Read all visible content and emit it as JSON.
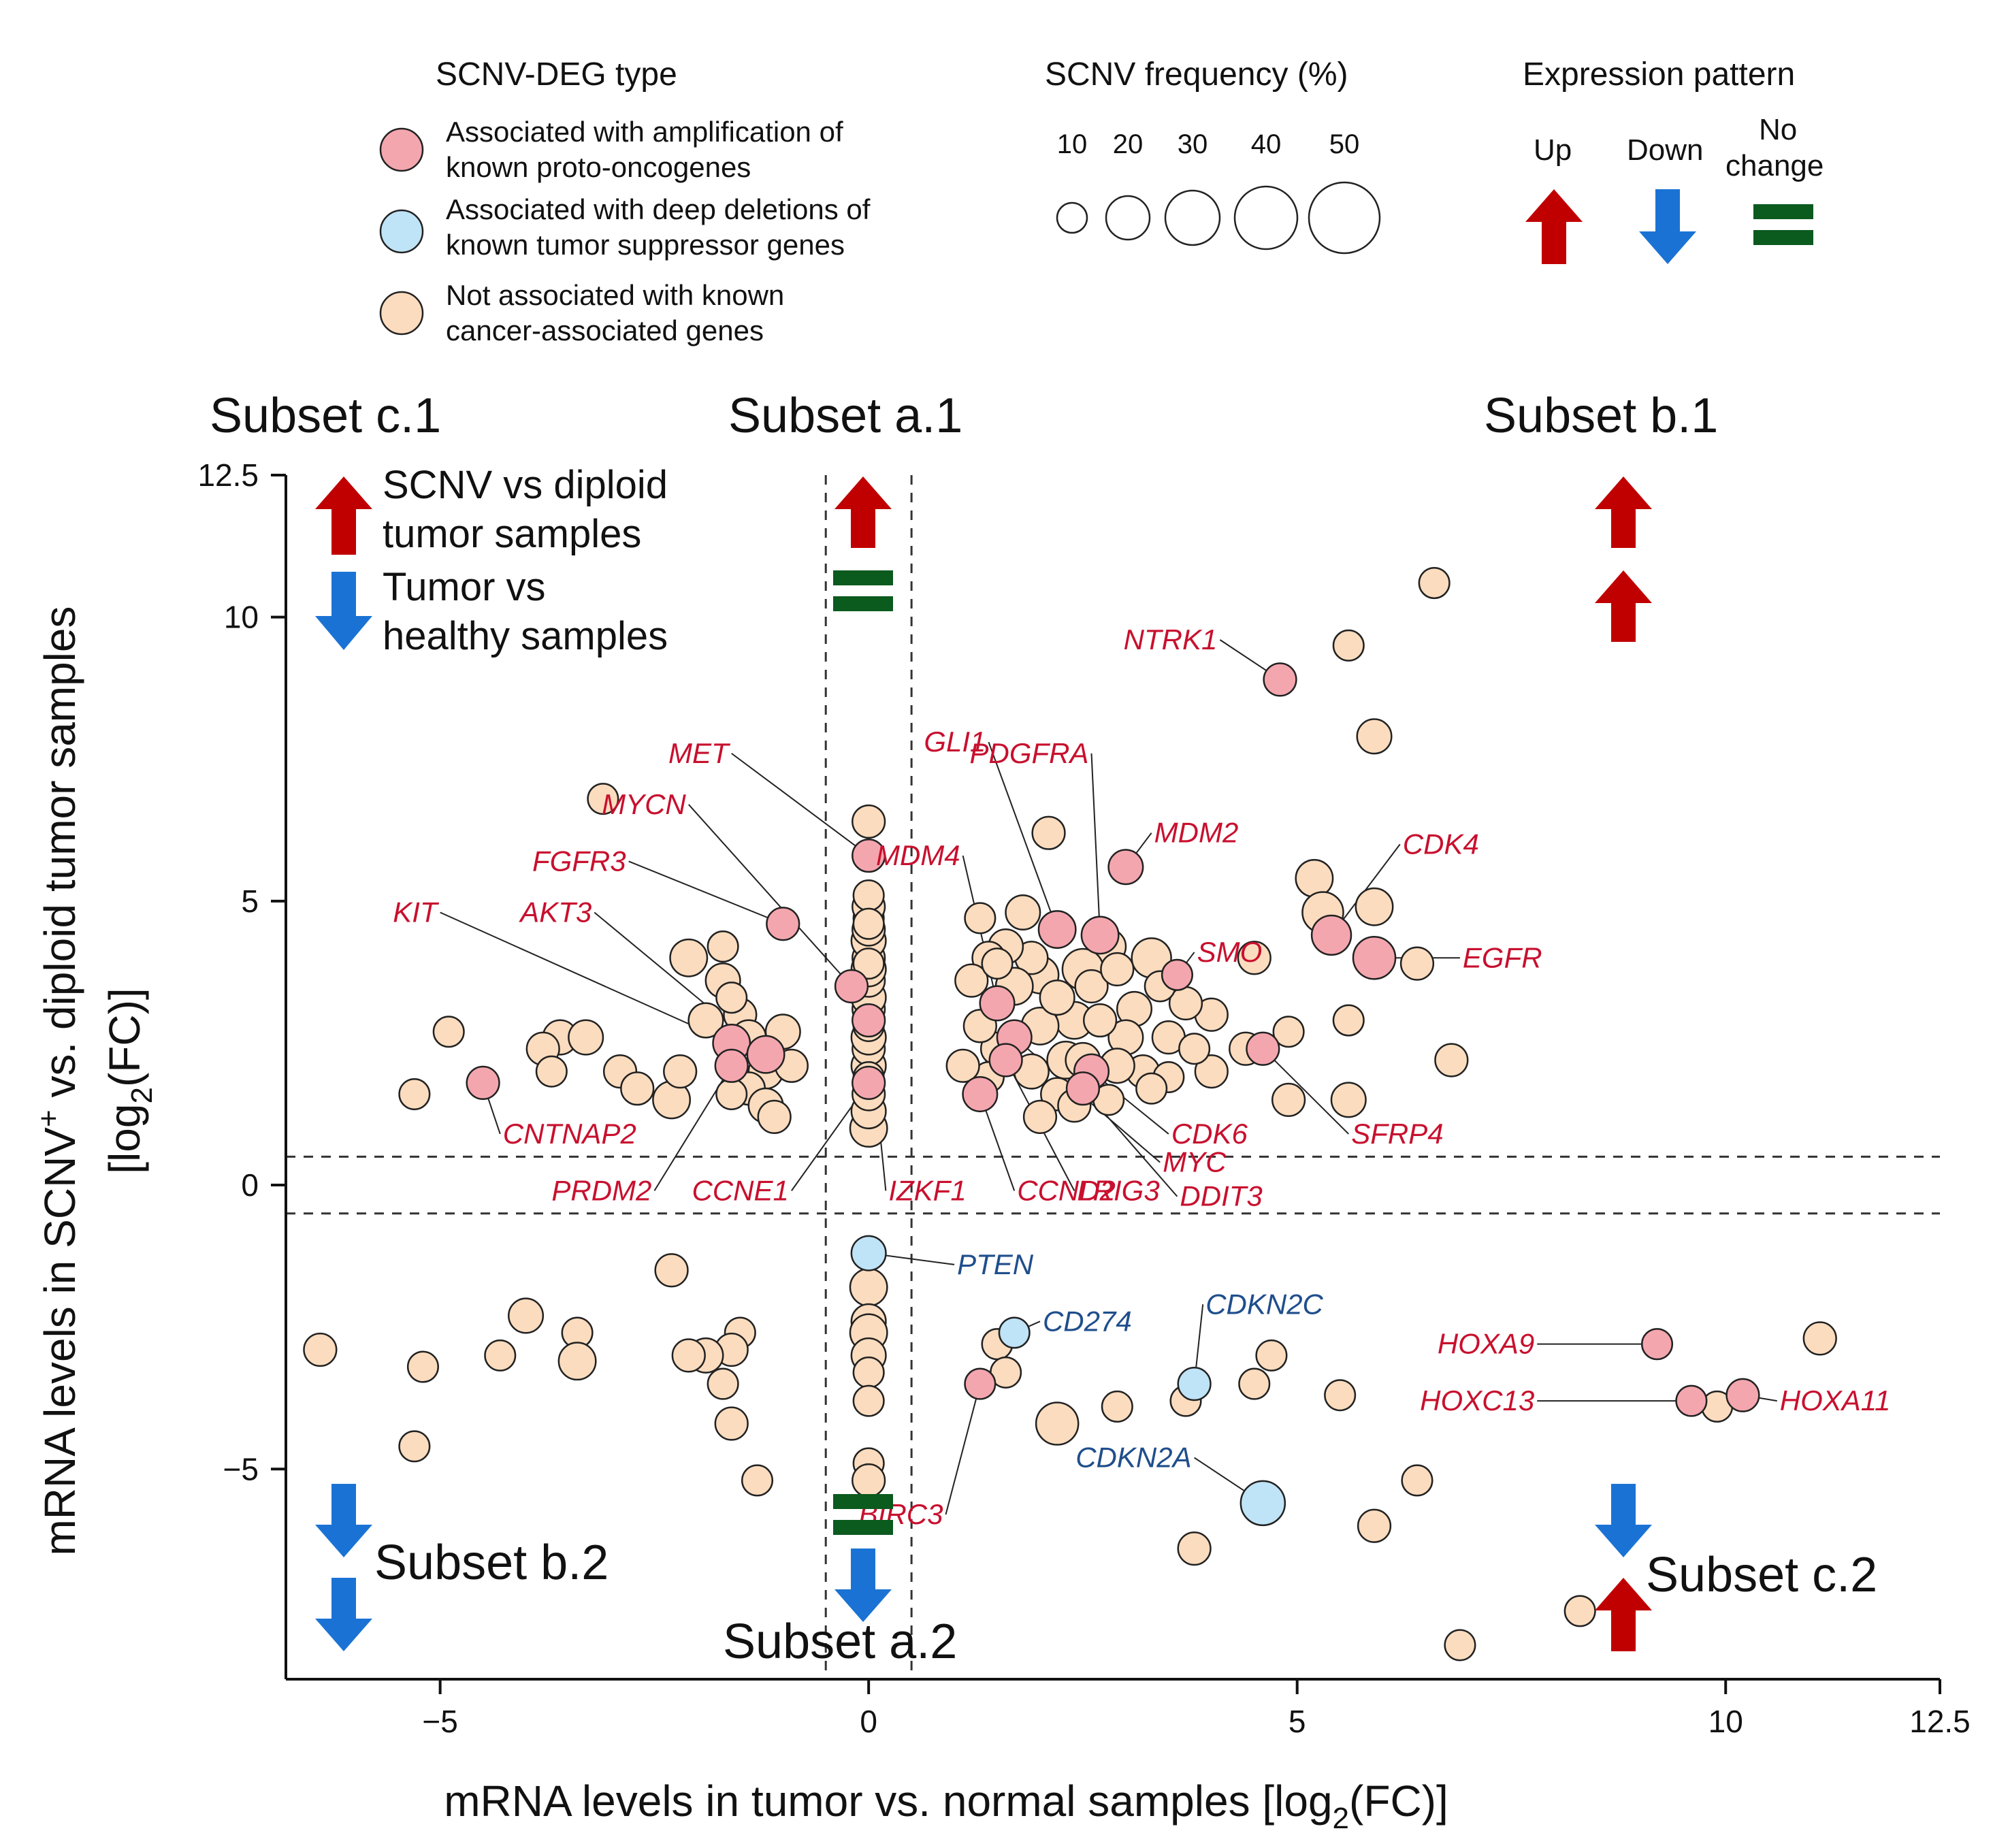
{
  "chart_data": {
    "type": "scatter",
    "xlabel_main": "mRNA levels in tumor vs. normal samples [log",
    "xlabel_sub": "2",
    "xlabel_tail": "(FC)]",
    "ylabel_line1_a": "mRNA levels in SCNV",
    "ylabel_line1_sup": "+",
    "ylabel_line1_b": " vs. diploid tumor samples",
    "ylabel_line2_a": "[log",
    "ylabel_line2_sub": "2",
    "ylabel_line2_b": "(FC)]",
    "xlim": [
      -6.8,
      12.5
    ],
    "ylim": [
      -8.7,
      12.5
    ],
    "xticks": [
      {
        "value": -5,
        "label": "−5"
      },
      {
        "value": 0,
        "label": "0"
      },
      {
        "value": 5,
        "label": "5"
      },
      {
        "value": 10,
        "label": "10"
      },
      {
        "value": 12.5,
        "label": "12.5"
      }
    ],
    "yticks": [
      {
        "value": 12.5,
        "label": "12.5"
      },
      {
        "value": 10,
        "label": "10"
      },
      {
        "value": 5,
        "label": "5"
      },
      {
        "value": 0,
        "label": "0"
      },
      {
        "value": -5,
        "label": "−5"
      }
    ],
    "thresholds": {
      "x": [
        -0.5,
        0.5
      ],
      "y": [
        0.5,
        -0.5
      ]
    },
    "legend": {
      "type_title": "SCNV-DEG type",
      "types": [
        {
          "key": "onc",
          "line1": "Associated with amplification of",
          "line2": "known proto-oncogenes",
          "color": "#f4a6ae"
        },
        {
          "key": "tsg",
          "line1": "Associated with deep deletions of",
          "line2": "known tumor suppressor genes",
          "color": "#bfe3f7"
        },
        {
          "key": "other",
          "line1": "Not associated with known",
          "line2": "cancer-associated genes",
          "color": "#fbdcbe"
        }
      ],
      "freq_title": "SCNV frequency (%)",
      "freq": [
        {
          "label": "10",
          "value": 10
        },
        {
          "label": "20",
          "value": 20
        },
        {
          "label": "30",
          "value": 30
        },
        {
          "label": "40",
          "value": 40
        },
        {
          "label": "50",
          "value": 50
        }
      ],
      "expr_title": "Expression pattern",
      "expr_up": "Up",
      "expr_down": "Down",
      "expr_nochange_1": "No",
      "expr_nochange_2": "change"
    },
    "inset_legend": {
      "up_1": "SCNV vs diploid",
      "up_2": "tumor samples",
      "down_1": "Tumor vs",
      "down_2": "healthy samples"
    },
    "subsets": {
      "c1": "Subset c.1",
      "a1": "Subset a.1",
      "b1": "Subset b.1",
      "b2": "Subset b.2",
      "a2": "Subset a.2",
      "c2": "Subset c.2"
    },
    "colors": {
      "onc": "#f4a6ae",
      "tsg": "#bfe3f7",
      "other": "#fbdcbe",
      "up": "#c00000",
      "down": "#1a73d4",
      "nochange": "#0b5a1e",
      "label_red": "#c8102e",
      "label_blue": "#1f4e8c"
    },
    "genes": [
      {
        "name": "NTRK1",
        "x": 4.8,
        "y": 8.9,
        "f": 10,
        "t": "onc",
        "lx": 4.1,
        "ly": 9.6
      },
      {
        "name": "MET",
        "x": 0.0,
        "y": 5.8,
        "f": 10,
        "t": "onc",
        "lx": -1.6,
        "ly": 7.6
      },
      {
        "name": "MYCN",
        "x": -0.2,
        "y": 3.5,
        "f": 10,
        "t": "onc",
        "lx": -2.1,
        "ly": 6.7
      },
      {
        "name": "FGFR3",
        "x": -1.0,
        "y": 4.6,
        "f": 10,
        "t": "onc",
        "lx": -2.8,
        "ly": 5.7
      },
      {
        "name": "KIT",
        "x": -1.6,
        "y": 2.5,
        "f": 15,
        "t": "onc",
        "lx": -5.0,
        "ly": 4.8
      },
      {
        "name": "AKT3",
        "x": -1.2,
        "y": 2.3,
        "f": 15,
        "t": "onc",
        "lx": -3.2,
        "ly": 4.8
      },
      {
        "name": "CNTNAP2",
        "x": -4.5,
        "y": 1.8,
        "f": 10,
        "t": "onc",
        "lx": -4.3,
        "ly": 0.9
      },
      {
        "name": "PRDM2",
        "x": -1.6,
        "y": 2.1,
        "f": 10,
        "t": "onc",
        "lx": -2.5,
        "ly": -0.1
      },
      {
        "name": "CCNE1",
        "x": 0.0,
        "y": 1.8,
        "f": 10,
        "t": "onc",
        "lx": -0.9,
        "ly": -0.1
      },
      {
        "name": "IZKF1",
        "x": 0.0,
        "y": 2.9,
        "f": 10,
        "t": "onc",
        "lx": 0.2,
        "ly": -0.1
      },
      {
        "name": "GLI1",
        "x": 2.2,
        "y": 4.5,
        "f": 15,
        "t": "onc",
        "lx": 1.4,
        "ly": 7.8
      },
      {
        "name": "PDGFRA",
        "x": 2.7,
        "y": 4.4,
        "f": 15,
        "t": "onc",
        "lx": 2.6,
        "ly": 7.6
      },
      {
        "name": "MDM2",
        "x": 3.0,
        "y": 5.6,
        "f": 12,
        "t": "onc",
        "lx": 3.3,
        "ly": 6.2
      },
      {
        "name": "MDM4",
        "x": 1.5,
        "y": 3.2,
        "f": 12,
        "t": "onc",
        "lx": 1.1,
        "ly": 5.8
      },
      {
        "name": "CDK4",
        "x": 5.4,
        "y": 4.4,
        "f": 18,
        "t": "onc",
        "lx": 6.2,
        "ly": 6.0
      },
      {
        "name": "EGFR",
        "x": 5.9,
        "y": 4.0,
        "f": 22,
        "t": "onc",
        "lx": 6.9,
        "ly": 4.0
      },
      {
        "name": "SMO",
        "x": 3.6,
        "y": 3.7,
        "f": 8,
        "t": "onc",
        "lx": 3.8,
        "ly": 4.1
      },
      {
        "name": "CDK6",
        "x": 2.6,
        "y": 2.0,
        "f": 12,
        "t": "onc",
        "lx": 3.5,
        "ly": 0.9
      },
      {
        "name": "MYC",
        "x": 1.7,
        "y": 2.6,
        "f": 12,
        "t": "onc",
        "lx": 3.4,
        "ly": 0.4
      },
      {
        "name": "SFRP4",
        "x": 4.6,
        "y": 2.4,
        "f": 10,
        "t": "onc",
        "lx": 5.6,
        "ly": 0.9
      },
      {
        "name": "CCND2",
        "x": 1.3,
        "y": 1.6,
        "f": 12,
        "t": "onc",
        "lx": 1.7,
        "ly": -0.1
      },
      {
        "name": "LRIG3",
        "x": 1.6,
        "y": 2.2,
        "f": 10,
        "t": "onc",
        "lx": 2.4,
        "ly": -0.1
      },
      {
        "name": "DDIT3",
        "x": 2.5,
        "y": 1.7,
        "f": 10,
        "t": "onc",
        "lx": 3.6,
        "ly": -0.2
      },
      {
        "name": "PTEN",
        "x": 0.0,
        "y": -1.2,
        "f": 12,
        "t": "tsg",
        "lx": 1.0,
        "ly": -1.4
      },
      {
        "name": "CD274",
        "x": 1.7,
        "y": -2.6,
        "f": 8,
        "t": "tsg",
        "lx": 2.0,
        "ly": -2.4
      },
      {
        "name": "CDKN2C",
        "x": 3.8,
        "y": -3.5,
        "f": 10,
        "t": "tsg",
        "lx": 3.9,
        "ly": -2.1
      },
      {
        "name": "CDKN2A",
        "x": 4.6,
        "y": -5.6,
        "f": 25,
        "t": "tsg",
        "lx": 3.8,
        "ly": -4.8
      },
      {
        "name": "BIRC3",
        "x": 1.3,
        "y": -3.5,
        "f": 8,
        "t": "onc",
        "lx": 0.9,
        "ly": -5.8
      },
      {
        "name": "HOXA9",
        "x": 9.2,
        "y": -2.8,
        "f": 8,
        "t": "onc",
        "lx": 7.8,
        "ly": -2.8
      },
      {
        "name": "HOXC13",
        "x": 9.6,
        "y": -3.8,
        "f": 8,
        "t": "onc",
        "lx": 7.8,
        "ly": -3.8
      },
      {
        "name": "HOXA11",
        "x": 10.2,
        "y": -3.7,
        "f": 10,
        "t": "onc",
        "lx": 10.6,
        "ly": -3.8
      }
    ],
    "other_points": [
      [
        6.6,
        10.6,
        8
      ],
      [
        5.6,
        9.5,
        8
      ],
      [
        5.9,
        7.9,
        12
      ],
      [
        -3.1,
        6.8,
        8
      ],
      [
        0.0,
        6.4,
        10
      ],
      [
        2.1,
        6.2,
        10
      ],
      [
        5.2,
        5.4,
        15
      ],
      [
        5.3,
        4.8,
        20
      ],
      [
        5.9,
        4.9,
        15
      ],
      [
        6.4,
        3.9,
        10
      ],
      [
        6.8,
        2.2,
        10
      ],
      [
        5.6,
        2.9,
        8
      ],
      [
        5.6,
        1.5,
        12
      ],
      [
        4.9,
        1.5,
        10
      ],
      [
        4.9,
        2.7,
        8
      ],
      [
        4.4,
        2.4,
        10
      ],
      [
        4.0,
        3.0,
        10
      ],
      [
        4.0,
        2.0,
        10
      ],
      [
        4.5,
        4.0,
        10
      ],
      [
        3.7,
        3.2,
        10
      ],
      [
        3.3,
        4.0,
        18
      ],
      [
        3.1,
        3.1,
        12
      ],
      [
        3.5,
        2.6,
        10
      ],
      [
        3.0,
        2.6,
        12
      ],
      [
        3.2,
        2.0,
        10
      ],
      [
        3.5,
        1.9,
        8
      ],
      [
        3.8,
        2.4,
        8
      ],
      [
        2.8,
        4.2,
        12
      ],
      [
        2.5,
        3.8,
        20
      ],
      [
        2.4,
        2.9,
        15
      ],
      [
        2.3,
        2.2,
        15
      ],
      [
        2.0,
        3.7,
        15
      ],
      [
        1.9,
        4.0,
        10
      ],
      [
        1.8,
        4.8,
        12
      ],
      [
        1.7,
        3.5,
        15
      ],
      [
        1.6,
        4.2,
        12
      ],
      [
        1.4,
        4.0,
        10
      ],
      [
        1.3,
        4.7,
        8
      ],
      [
        1.5,
        2.4,
        10
      ],
      [
        1.3,
        2.8,
        10
      ],
      [
        1.2,
        3.6,
        10
      ],
      [
        1.9,
        2.0,
        12
      ],
      [
        2.0,
        2.8,
        15
      ],
      [
        2.2,
        1.6,
        10
      ],
      [
        2.5,
        2.2,
        12
      ],
      [
        2.7,
        2.9,
        10
      ],
      [
        1.4,
        1.9,
        8
      ],
      [
        2.0,
        1.2,
        10
      ],
      [
        2.8,
        1.5,
        8
      ],
      [
        1.1,
        2.1,
        10
      ],
      [
        2.2,
        3.3,
        12
      ],
      [
        1.5,
        3.9,
        8
      ],
      [
        2.6,
        3.5,
        10
      ],
      [
        2.4,
        1.4,
        10
      ],
      [
        2.9,
        2.1,
        12
      ],
      [
        3.3,
        1.7,
        8
      ],
      [
        2.9,
        3.8,
        10
      ],
      [
        3.4,
        3.5,
        8
      ],
      [
        -3.6,
        2.6,
        12
      ],
      [
        -3.8,
        2.4,
        10
      ],
      [
        -3.3,
        2.6,
        12
      ],
      [
        -3.7,
        2.0,
        8
      ],
      [
        -2.9,
        2.0,
        10
      ],
      [
        -2.7,
        1.7,
        10
      ],
      [
        -2.3,
        1.5,
        15
      ],
      [
        -2.2,
        2.0,
        10
      ],
      [
        -2.1,
        4.0,
        15
      ],
      [
        -1.7,
        3.6,
        12
      ],
      [
        -1.7,
        4.2,
        8
      ],
      [
        -1.9,
        2.9,
        12
      ],
      [
        -1.5,
        3.0,
        10
      ],
      [
        -1.4,
        2.6,
        12
      ],
      [
        -1.0,
        2.7,
        12
      ],
      [
        -1.2,
        2.0,
        12
      ],
      [
        -1.4,
        1.7,
        10
      ],
      [
        -1.2,
        1.4,
        12
      ],
      [
        -1.1,
        1.2,
        10
      ],
      [
        -1.6,
        1.6,
        8
      ],
      [
        -0.9,
        2.1,
        10
      ],
      [
        -1.6,
        3.3,
        8
      ],
      [
        -4.9,
        2.7,
        8
      ],
      [
        -5.3,
        1.6,
        8
      ],
      [
        -2.3,
        -1.5,
        10
      ],
      [
        -1.5,
        -2.6,
        8
      ],
      [
        -1.6,
        -2.9,
        10
      ],
      [
        -1.9,
        -3.0,
        12
      ],
      [
        -1.7,
        -3.5,
        8
      ],
      [
        -2.1,
        -3.0,
        10
      ],
      [
        -1.6,
        -4.2,
        10
      ],
      [
        -1.3,
        -5.2,
        8
      ],
      [
        -3.4,
        -2.6,
        8
      ],
      [
        -3.4,
        -3.1,
        15
      ],
      [
        -4.0,
        -2.3,
        12
      ],
      [
        -4.3,
        -3.0,
        8
      ],
      [
        -5.2,
        -3.2,
        8
      ],
      [
        -5.3,
        -4.6,
        8
      ],
      [
        -6.4,
        -2.9,
        10
      ],
      [
        0.0,
        -1.8,
        15
      ],
      [
        0.0,
        -2.4,
        12
      ],
      [
        0.0,
        -2.6,
        15
      ],
      [
        0.0,
        -3.0,
        12
      ],
      [
        0.0,
        -3.3,
        8
      ],
      [
        0.0,
        -3.8,
        8
      ],
      [
        0.0,
        -4.9,
        8
      ],
      [
        0.0,
        -5.2,
        10
      ],
      [
        1.5,
        -2.8,
        8
      ],
      [
        1.6,
        -3.3,
        8
      ],
      [
        2.2,
        -4.2,
        22
      ],
      [
        2.9,
        -3.9,
        8
      ],
      [
        3.7,
        -3.8,
        8
      ],
      [
        3.8,
        -6.4,
        10
      ],
      [
        4.5,
        -3.5,
        8
      ],
      [
        4.7,
        -3.0,
        8
      ],
      [
        5.5,
        -3.7,
        8
      ],
      [
        5.9,
        -6.0,
        10
      ],
      [
        6.4,
        -5.2,
        8
      ],
      [
        8.3,
        -7.5,
        8
      ],
      [
        9.9,
        -3.9,
        8
      ],
      [
        10.2,
        -3.7,
        8
      ],
      [
        11.1,
        -2.7,
        10
      ],
      [
        6.9,
        -8.1,
        8
      ],
      [
        0.0,
        1.0,
        15
      ],
      [
        0.0,
        1.3,
        12
      ],
      [
        0.0,
        1.6,
        10
      ],
      [
        0.0,
        2.1,
        12
      ],
      [
        0.0,
        2.4,
        10
      ],
      [
        0.0,
        2.6,
        12
      ],
      [
        0.0,
        3.1,
        10
      ],
      [
        0.0,
        3.3,
        12
      ],
      [
        0.0,
        3.6,
        10
      ],
      [
        0.0,
        3.8,
        12
      ],
      [
        0.0,
        4.0,
        10
      ],
      [
        0.0,
        4.3,
        12
      ],
      [
        0.0,
        4.5,
        10
      ],
      [
        0.0,
        4.7,
        8
      ],
      [
        0.0,
        4.9,
        10
      ],
      [
        0.0,
        5.1,
        8
      ],
      [
        0.0,
        1.9,
        8
      ],
      [
        0.0,
        2.8,
        8
      ],
      [
        0.0,
        3.9,
        8
      ],
      [
        0.0,
        4.6,
        8
      ]
    ]
  }
}
